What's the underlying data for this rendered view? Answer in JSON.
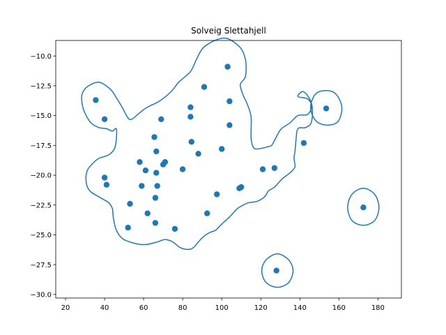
{
  "chart_data": {
    "type": "scatter",
    "title": "Solveig Slettahjell",
    "xlabel": "",
    "ylabel": "",
    "xlim": [
      15,
      192
    ],
    "ylim": [
      -30.3,
      -8.7
    ],
    "x_ticks": [
      20,
      40,
      60,
      80,
      100,
      120,
      140,
      160,
      180
    ],
    "x_tick_labels": [
      "20",
      "40",
      "60",
      "80",
      "100",
      "120",
      "140",
      "160",
      "180"
    ],
    "y_ticks": [
      -10.0,
      -12.5,
      -15.0,
      -17.5,
      -20.0,
      -22.5,
      -25.0,
      -27.5,
      -30.0
    ],
    "y_tick_labels": [
      "−10.0",
      "−12.5",
      "−15.0",
      "−17.5",
      "−20.0",
      "−22.5",
      "−25.0",
      "−27.5",
      "−30.0"
    ],
    "grid": false,
    "point_color": "#1f77b4",
    "contour_color": "#1f77b4",
    "points": [
      {
        "x": 35.5,
        "y": -13.7
      },
      {
        "x": 40.0,
        "y": -15.3
      },
      {
        "x": 40.0,
        "y": -20.2
      },
      {
        "x": 41.0,
        "y": -20.8
      },
      {
        "x": 52.0,
        "y": -24.4
      },
      {
        "x": 53.0,
        "y": -22.4
      },
      {
        "x": 58.0,
        "y": -18.9
      },
      {
        "x": 59.0,
        "y": -20.9
      },
      {
        "x": 61.0,
        "y": -19.6
      },
      {
        "x": 62.0,
        "y": -23.2
      },
      {
        "x": 65.5,
        "y": -16.8
      },
      {
        "x": 66.0,
        "y": -21.9
      },
      {
        "x": 66.0,
        "y": -24.0
      },
      {
        "x": 66.5,
        "y": -18.0
      },
      {
        "x": 66.5,
        "y": -19.8
      },
      {
        "x": 67.0,
        "y": -20.9
      },
      {
        "x": 69.0,
        "y": -15.3
      },
      {
        "x": 70.0,
        "y": -19.1
      },
      {
        "x": 71.0,
        "y": -18.9
      },
      {
        "x": 76.0,
        "y": -24.5
      },
      {
        "x": 80.0,
        "y": -19.5
      },
      {
        "x": 84.0,
        "y": -14.3
      },
      {
        "x": 84.0,
        "y": -15.1
      },
      {
        "x": 84.5,
        "y": -17.2
      },
      {
        "x": 88.0,
        "y": -18.2
      },
      {
        "x": 91.0,
        "y": -12.6
      },
      {
        "x": 92.5,
        "y": -23.2
      },
      {
        "x": 97.5,
        "y": -21.6
      },
      {
        "x": 100.0,
        "y": -17.8
      },
      {
        "x": 103.0,
        "y": -10.9
      },
      {
        "x": 104.0,
        "y": -13.8
      },
      {
        "x": 104.0,
        "y": -15.8
      },
      {
        "x": 109.0,
        "y": -21.1
      },
      {
        "x": 110.0,
        "y": -21.0
      },
      {
        "x": 121.0,
        "y": -19.5
      },
      {
        "x": 127.0,
        "y": -19.4
      },
      {
        "x": 128.0,
        "y": -28.0
      },
      {
        "x": 142.0,
        "y": -17.3
      },
      {
        "x": 153.5,
        "y": -14.4
      },
      {
        "x": 172.5,
        "y": -22.7
      }
    ],
    "contours": [
      {
        "name": "main",
        "closed": true,
        "points": [
          [
            28.5,
            -13.2
          ],
          [
            31,
            -12.6
          ],
          [
            37,
            -12.2
          ],
          [
            43,
            -12.8
          ],
          [
            46,
            -13.5
          ],
          [
            49,
            -14.3
          ],
          [
            52,
            -15.2
          ],
          [
            54,
            -15.3
          ],
          [
            57,
            -14.9
          ],
          [
            60,
            -14.5
          ],
          [
            63,
            -14.2
          ],
          [
            68,
            -13.8
          ],
          [
            74,
            -13.0
          ],
          [
            78,
            -12.2
          ],
          [
            84,
            -11.3
          ],
          [
            87,
            -10.3
          ],
          [
            90,
            -9.4
          ],
          [
            94,
            -8.9
          ],
          [
            98,
            -8.6
          ],
          [
            102,
            -8.5
          ],
          [
            106,
            -8.8
          ],
          [
            110,
            -9.4
          ],
          [
            112,
            -10.2
          ],
          [
            112.5,
            -11.0
          ],
          [
            112,
            -11.8
          ],
          [
            109.5,
            -12.4
          ],
          [
            111,
            -13.3
          ],
          [
            113,
            -14.0
          ],
          [
            115,
            -15.1
          ],
          [
            115,
            -16.8
          ],
          [
            116,
            -17.6
          ],
          [
            118,
            -17.8
          ],
          [
            124,
            -17.6
          ],
          [
            126,
            -17.4
          ],
          [
            130,
            -16.2
          ],
          [
            135,
            -15.6
          ],
          [
            139,
            -15.0
          ],
          [
            144,
            -14.9
          ],
          [
            146,
            -14.2
          ],
          [
            144,
            -13.6
          ],
          [
            139,
            -13.4
          ],
          [
            142,
            -13.0
          ],
          [
            146,
            -14.0
          ],
          [
            146,
            -15.5
          ],
          [
            143,
            -16.0
          ],
          [
            139,
            -16.1
          ],
          [
            138,
            -17.1
          ],
          [
            137.5,
            -18.0
          ],
          [
            137,
            -18.6
          ],
          [
            137.5,
            -19.3
          ],
          [
            135,
            -19.8
          ],
          [
            131,
            -20.3
          ],
          [
            127,
            -21.0
          ],
          [
            124,
            -21.3
          ],
          [
            122,
            -21.8
          ],
          [
            118,
            -22.2
          ],
          [
            114,
            -22.3
          ],
          [
            111,
            -22.5
          ],
          [
            108,
            -22.8
          ],
          [
            104,
            -23.5
          ],
          [
            100,
            -24.1
          ],
          [
            97,
            -24.6
          ],
          [
            94,
            -24.8
          ],
          [
            91,
            -25.1
          ],
          [
            88,
            -25.6
          ],
          [
            86,
            -26.0
          ],
          [
            84,
            -26.2
          ],
          [
            81,
            -26.2
          ],
          [
            78,
            -26.0
          ],
          [
            75,
            -25.6
          ],
          [
            71,
            -25.4
          ],
          [
            67,
            -25.6
          ],
          [
            62,
            -25.8
          ],
          [
            58,
            -25.8
          ],
          [
            53,
            -25.6
          ],
          [
            49,
            -25.3
          ],
          [
            46,
            -24.6
          ],
          [
            44.5,
            -23.6
          ],
          [
            44,
            -22.8
          ],
          [
            42,
            -22.3
          ],
          [
            38,
            -21.9
          ],
          [
            33,
            -21.4
          ],
          [
            31,
            -20.9
          ],
          [
            30.5,
            -20.1
          ],
          [
            31.5,
            -19.5
          ],
          [
            34,
            -19.0
          ],
          [
            37,
            -18.6
          ],
          [
            42,
            -18.3
          ],
          [
            45,
            -17.8
          ],
          [
            46,
            -17.0
          ],
          [
            46,
            -16.1
          ],
          [
            44,
            -16.3
          ],
          [
            41,
            -16.1
          ],
          [
            37,
            -16.0
          ],
          [
            33,
            -15.6
          ],
          [
            30,
            -14.8
          ],
          [
            28.5,
            -14.0
          ]
        ]
      },
      {
        "name": "right-cluster",
        "closed": true,
        "points": [
          [
            153.5,
            -12.9
          ],
          [
            158.5,
            -13.2
          ],
          [
            161.5,
            -14.3
          ],
          [
            159.5,
            -15.5
          ],
          [
            153.5,
            -15.8
          ],
          [
            148,
            -15.4
          ],
          [
            145.5,
            -14.3
          ],
          [
            148,
            -13.2
          ]
        ]
      },
      {
        "name": "outlier-right",
        "closed": true,
        "points": [
          [
            172.5,
            -21.1
          ],
          [
            178.3,
            -21.6
          ],
          [
            180.5,
            -22.7
          ],
          [
            178.3,
            -23.8
          ],
          [
            172.5,
            -24.2
          ],
          [
            166.7,
            -23.8
          ],
          [
            164.5,
            -22.7
          ],
          [
            166.7,
            -21.6
          ]
        ]
      },
      {
        "name": "outlier-bottom",
        "closed": true,
        "points": [
          [
            128.5,
            -26.6
          ],
          [
            134.3,
            -27.1
          ],
          [
            136.5,
            -28.0
          ],
          [
            134.3,
            -29.0
          ],
          [
            128.5,
            -29.4
          ],
          [
            122.7,
            -29.0
          ],
          [
            120.5,
            -28.0
          ],
          [
            122.7,
            -27.1
          ]
        ]
      }
    ]
  }
}
